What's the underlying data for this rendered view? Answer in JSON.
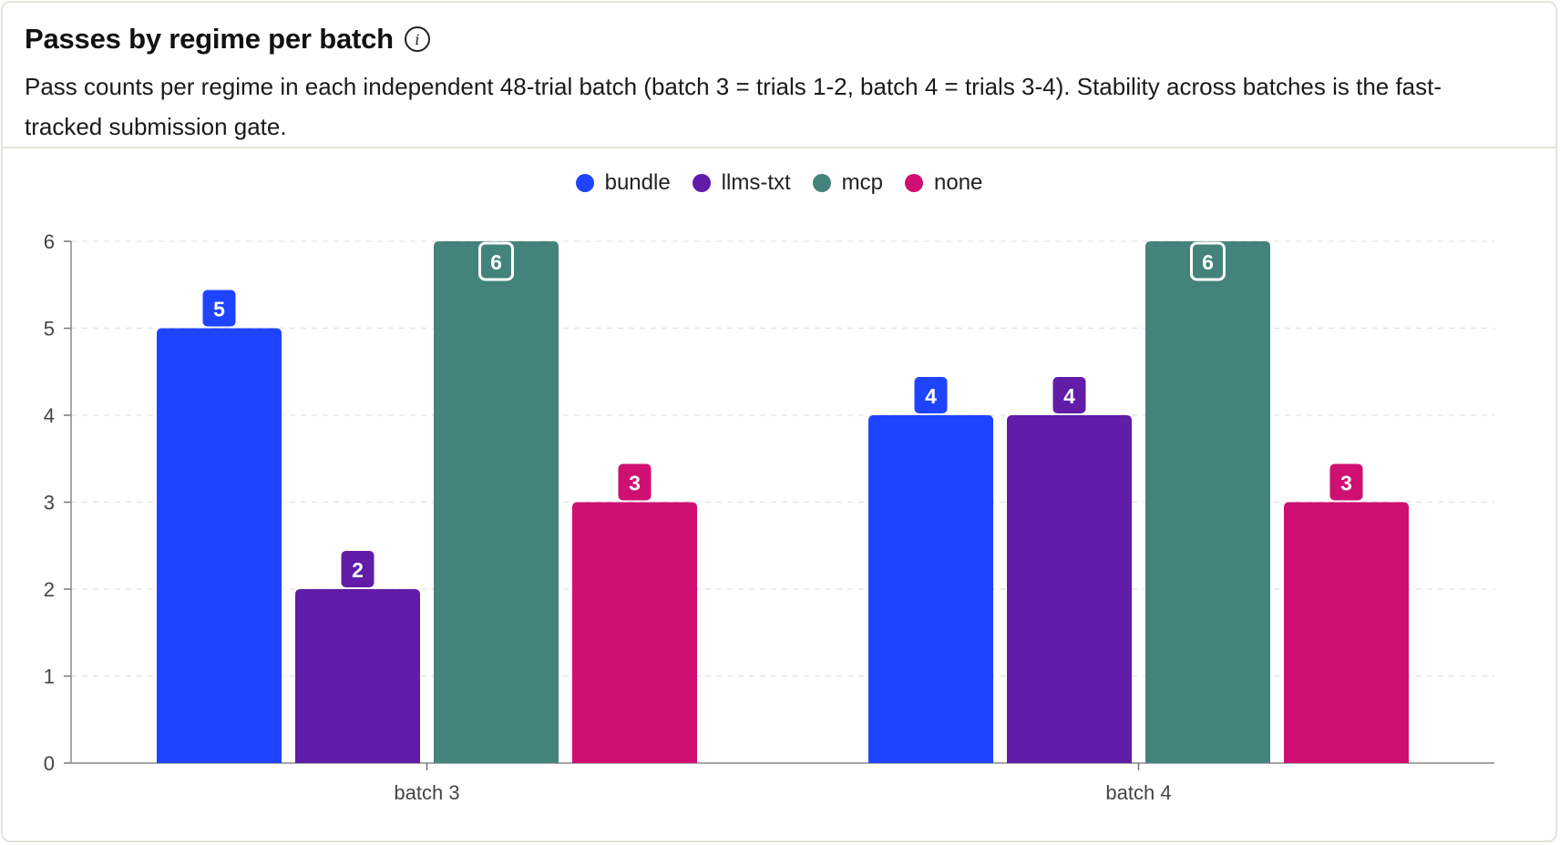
{
  "header": {
    "title": "Passes by regime per batch",
    "info_icon": "info-icon",
    "subtitle": "Pass counts per regime in each independent 48-trial batch (batch 3 = trials 1-2, batch 4 = trials 3-4). Stability across batches is the fast-tracked submission gate."
  },
  "chart_data": {
    "type": "bar",
    "title": "Passes by regime per batch",
    "xlabel": "",
    "ylabel": "",
    "categories": [
      "batch 3",
      "batch 4"
    ],
    "ylim": [
      0,
      6
    ],
    "yticks": [
      0,
      1,
      2,
      3,
      4,
      5,
      6
    ],
    "grid": true,
    "legend_position": "top-center",
    "series": [
      {
        "name": "bundle",
        "color": "#1f44ff",
        "values": [
          5,
          4
        ]
      },
      {
        "name": "llms-txt",
        "color": "#611ca8",
        "values": [
          2,
          4
        ]
      },
      {
        "name": "mcp",
        "color": "#43837c",
        "values": [
          6,
          6
        ]
      },
      {
        "name": "none",
        "color": "#cf0f72",
        "values": [
          3,
          3
        ]
      }
    ]
  }
}
